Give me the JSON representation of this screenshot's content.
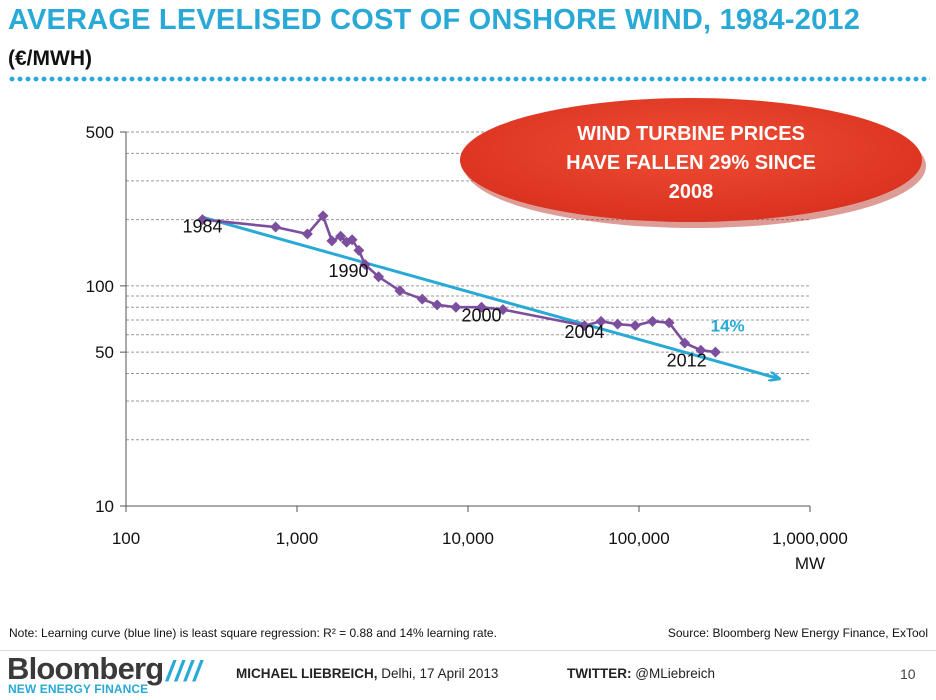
{
  "slide": {
    "title": "AVERAGE LEVELISED COST OF ONSHORE WIND, 1984-2012",
    "title_unit": "(€/MWH)",
    "accent_color": "#29a9d6",
    "callout": {
      "lines": [
        "WIND TURBINE PRICES",
        "HAVE FALLEN 29% SINCE",
        "2008"
      ],
      "color": "#e03a28"
    },
    "note": "Note: Learning curve (blue line) is least square regression: R² = 0.88 and 14% learning rate.",
    "source": "Source: Bloomberg New Energy Finance, ExTool",
    "footer": {
      "logo_main": "Bloomberg",
      "logo_sub": "NEW ENERGY FINANCE",
      "slashes": "////",
      "presenter_name": "MICHAEL LIEBREICH,",
      "presenter_place": "Delhi, 17 April 2013",
      "twitter_label": "TWITTER:",
      "twitter_handle": "@MLiebreich",
      "page_number": "10"
    }
  },
  "chart_data": {
    "type": "line",
    "x_scale": "log",
    "y_scale": "log",
    "xlim": [
      100,
      1000000
    ],
    "ylim": [
      10,
      500
    ],
    "x_ticks": [
      100,
      1000,
      10000,
      100000,
      1000000
    ],
    "x_tick_labels": [
      "100",
      "1,000",
      "10,000",
      "100,000",
      "1,000,000"
    ],
    "y_ticks": [
      10,
      50,
      100,
      500
    ],
    "y_tick_labels": [
      "10",
      "50",
      "100",
      "500"
    ],
    "y_gridlines": [
      20,
      30,
      40,
      50,
      60,
      70,
      80,
      90,
      100,
      200,
      300,
      400,
      500
    ],
    "xlabel": "MW",
    "ylabel": "",
    "grid": true,
    "series": [
      {
        "color": "#7b4f9d",
        "marker": "diamond",
        "points": [
          [
            280,
            200
          ],
          [
            750,
            185
          ],
          [
            1150,
            172
          ],
          [
            1420,
            208
          ],
          [
            1600,
            160
          ],
          [
            1800,
            168
          ],
          [
            1950,
            158
          ],
          [
            2100,
            162
          ],
          [
            2300,
            145
          ],
          [
            2500,
            125
          ],
          [
            3000,
            110
          ],
          [
            4000,
            95
          ],
          [
            5400,
            87
          ],
          [
            6600,
            82
          ],
          [
            8500,
            80
          ],
          [
            12000,
            80
          ],
          [
            16000,
            78
          ],
          [
            48000,
            66
          ],
          [
            60000,
            69
          ],
          [
            75000,
            67
          ],
          [
            95000,
            66
          ],
          [
            120000,
            69
          ],
          [
            150000,
            68
          ],
          [
            185000,
            55
          ],
          [
            230000,
            51
          ],
          [
            280000,
            50
          ]
        ]
      },
      {
        "color": "#29a9d6",
        "points": [
          [
            280,
            205
          ],
          [
            650000,
            38
          ]
        ]
      }
    ],
    "annotations": [
      {
        "text": "1984",
        "x": 280,
        "y": 175
      },
      {
        "text": "1990",
        "x": 2000,
        "y": 110
      },
      {
        "text": "2000",
        "x": 12000,
        "y": 69
      },
      {
        "text": "2004",
        "x": 48000,
        "y": 58
      },
      {
        "text": "2012",
        "x": 190000,
        "y": 43
      },
      {
        "text": "14%",
        "x": 330000,
        "y": 62,
        "color": "#29a9d6"
      }
    ]
  }
}
